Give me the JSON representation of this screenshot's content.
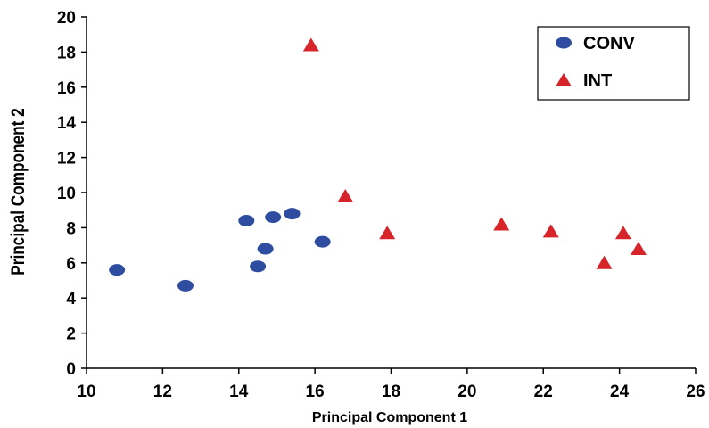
{
  "chart_data": {
    "type": "scatter",
    "title": "",
    "xlabel": "Principal Component 1",
    "ylabel": "Principal Component 2",
    "xlim": [
      10,
      26
    ],
    "ylim": [
      0,
      20
    ],
    "xticks": [
      10,
      12,
      14,
      16,
      18,
      20,
      22,
      24,
      26
    ],
    "yticks": [
      0,
      2,
      4,
      6,
      8,
      10,
      12,
      14,
      16,
      18,
      20
    ],
    "grid": false,
    "legend_position": "top-right",
    "series": [
      {
        "name": "CONV",
        "marker": "ellipse",
        "color": "#2E4DA0",
        "points": [
          {
            "x": 10.8,
            "y": 5.6
          },
          {
            "x": 12.6,
            "y": 4.7
          },
          {
            "x": 14.2,
            "y": 8.4
          },
          {
            "x": 14.5,
            "y": 5.8
          },
          {
            "x": 14.7,
            "y": 6.8
          },
          {
            "x": 14.9,
            "y": 8.6
          },
          {
            "x": 15.4,
            "y": 8.8
          },
          {
            "x": 16.2,
            "y": 7.2
          }
        ]
      },
      {
        "name": "INT",
        "marker": "triangle",
        "color": "#D7242A",
        "points": [
          {
            "x": 15.9,
            "y": 18.4
          },
          {
            "x": 16.8,
            "y": 9.8
          },
          {
            "x": 17.9,
            "y": 7.7
          },
          {
            "x": 20.9,
            "y": 8.2
          },
          {
            "x": 22.2,
            "y": 7.8
          },
          {
            "x": 23.6,
            "y": 6.0
          },
          {
            "x": 24.1,
            "y": 7.7
          },
          {
            "x": 24.5,
            "y": 6.8
          }
        ]
      }
    ]
  }
}
